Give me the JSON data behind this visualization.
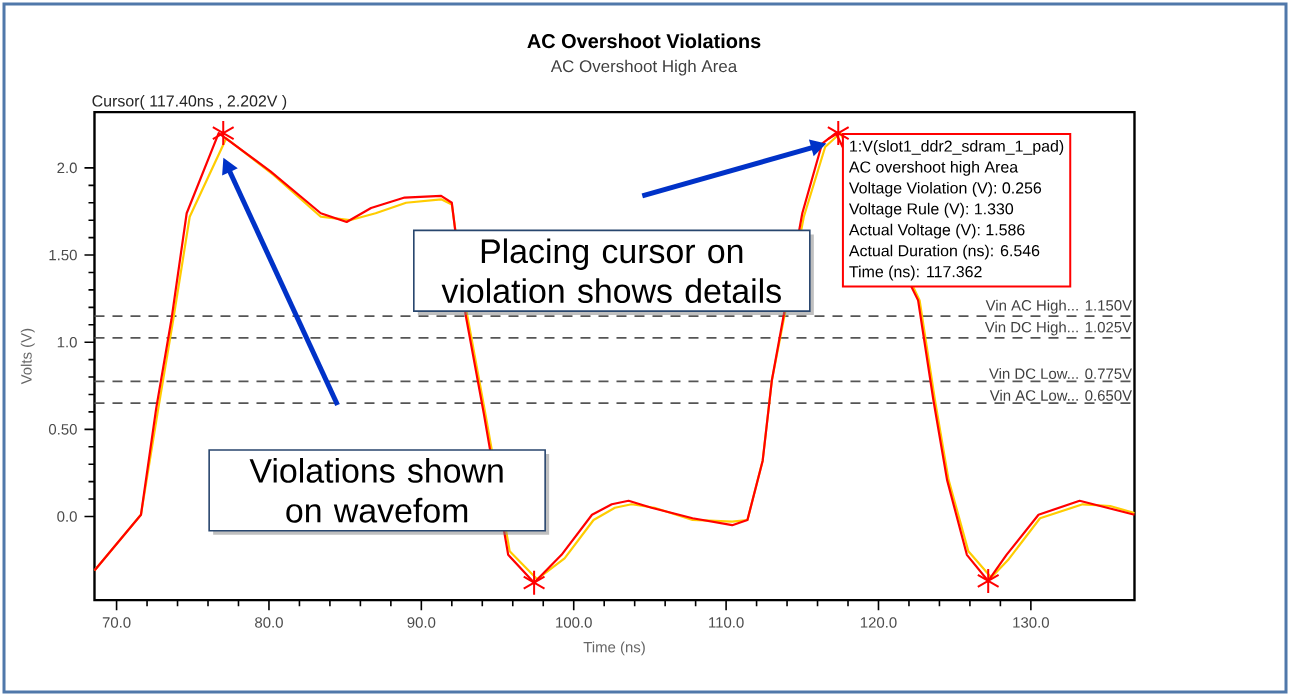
{
  "chart_data": {
    "type": "line",
    "title": "AC Overshoot Violations",
    "subtitle": "AC Overshoot High Area",
    "xlabel": "Time (ns)",
    "ylabel": "Volts (V)",
    "xlim": [
      68.55,
      136.8
    ],
    "ylim": [
      -0.48,
      2.32
    ],
    "xticks": [
      {
        "value": 70,
        "label": "70.0"
      },
      {
        "value": 80,
        "label": "80.0"
      },
      {
        "value": 90,
        "label": "90.0"
      },
      {
        "value": 100,
        "label": "100.0"
      },
      {
        "value": 110,
        "label": "110.0"
      },
      {
        "value": 120,
        "label": "120.0"
      },
      {
        "value": 130,
        "label": "130.0"
      }
    ],
    "yticks": [
      {
        "value": 0,
        "label": "0.0"
      },
      {
        "value": 0.5,
        "label": "0.50"
      },
      {
        "value": 1,
        "label": "1.0"
      },
      {
        "value": 1.5,
        "label": "1.50"
      },
      {
        "value": 2,
        "label": "2.0"
      }
    ],
    "grid": false,
    "series": [
      {
        "color": "#ffcc00",
        "x": [
          68.55,
          71.6,
          72.7,
          73.7,
          74.8,
          77.2,
          80.3,
          83.4,
          85.3,
          87,
          89,
          91.3,
          92,
          93,
          94.2,
          95,
          95.8,
          97.6,
          99.4,
          101.3,
          102.7,
          103.8,
          105.3,
          107.8,
          110.4,
          111.4,
          112.4,
          113,
          113.4,
          115.1,
          116.5,
          117.5,
          118.5,
          119.7,
          121,
          121.8,
          122.7,
          123.7,
          124.6,
          125.9,
          127.4,
          128.5,
          130.6,
          133.4,
          135.2,
          136.8
        ],
        "values": [
          -0.31,
          0.01,
          0.6,
          1.12,
          1.72,
          2.17,
          1.96,
          1.72,
          1.7,
          1.74,
          1.8,
          1.82,
          1.79,
          1.16,
          0.59,
          null,
          -0.2,
          -0.36,
          -0.24,
          -0.02,
          0.05,
          0.07,
          0.05,
          -0.02,
          -0.03,
          -0.02,
          0.32,
          0.78,
          null,
          1.72,
          2.12,
          2.2,
          null,
          null,
          null,
          null,
          1.24,
          0.67,
          0.21,
          -0.2,
          -0.35,
          -0.25,
          -0.01,
          0.07,
          0.06,
          0.02
        ],
        "line_style": "solid"
      },
      {
        "color": "#ff0000",
        "x": [
          68.55,
          71.6,
          72.6,
          73.6,
          74.6,
          76.7,
          80.1,
          83.4,
          85.1,
          86.7,
          88.9,
          91.3,
          92,
          92.9,
          94.1,
          94.9,
          95.7,
          97.4,
          99.2,
          101.2,
          102.5,
          103.6,
          105.1,
          107.8,
          110.4,
          111.4,
          112.4,
          113,
          113.4,
          115,
          116.3,
          117.2,
          118.3,
          119.6,
          120.9,
          121.7,
          122.6,
          123.6,
          124.5,
          125.8,
          127.2,
          128.4,
          130.5,
          133.2,
          135,
          136.8
        ],
        "values": [
          -0.31,
          0.01,
          0.62,
          1.13,
          1.74,
          2.2,
          1.98,
          1.74,
          1.69,
          1.77,
          1.83,
          1.84,
          1.8,
          1.16,
          0.59,
          null,
          -0.22,
          -0.38,
          -0.22,
          0.01,
          0.07,
          0.09,
          0.05,
          -0.01,
          -0.05,
          -0.02,
          0.32,
          0.78,
          null,
          1.74,
          2.14,
          2.2,
          null,
          null,
          null,
          null,
          1.24,
          0.67,
          0.21,
          -0.22,
          -0.37,
          -0.22,
          0.01,
          0.09,
          0.05,
          0.01
        ],
        "line_style": "solid"
      },
      {
        "type": "scatter",
        "marker": "cross",
        "color": "#ff0000",
        "x": [
          77,
          97.4,
          117.36,
          127.2
        ],
        "values": [
          2.2,
          -0.38,
          2.2,
          -0.37
        ]
      }
    ],
    "ref_lines": [
      {
        "axis": "y",
        "value": 1.15,
        "label": "Vin AC High... 1.150V",
        "color": "#555555",
        "line_style": "dashed"
      },
      {
        "axis": "y",
        "value": 1.025,
        "label": "Vin DC High... 1.025V",
        "color": "#555555",
        "line_style": "dashed"
      },
      {
        "axis": "y",
        "value": 0.775,
        "label": "Vin DC Low... 0.775V",
        "color": "#555555",
        "line_style": "dashed"
      },
      {
        "axis": "y",
        "value": 0.65,
        "label": "Vin AC Low... 0.650V",
        "color": "#555555",
        "line_style": "dashed"
      }
    ],
    "annotations": [
      "Cursor( 117.40ns , 2.202V )",
      {
        "text": "Placing cursor on violation shows details",
        "x": 116.6,
        "y": 2.14
      },
      "Violations shown on wavefom",
      "1:V(slot1_ddr2_sdram_1_pad)",
      "AC overshoot high Area",
      "Voltage Violation (V): 0.256",
      "Voltage Rule (V): 1.330",
      "Actual Voltage (V): 1.586",
      "Actual Duration (ns): 6.546",
      "Time (ns): 117.362"
    ]
  }
}
